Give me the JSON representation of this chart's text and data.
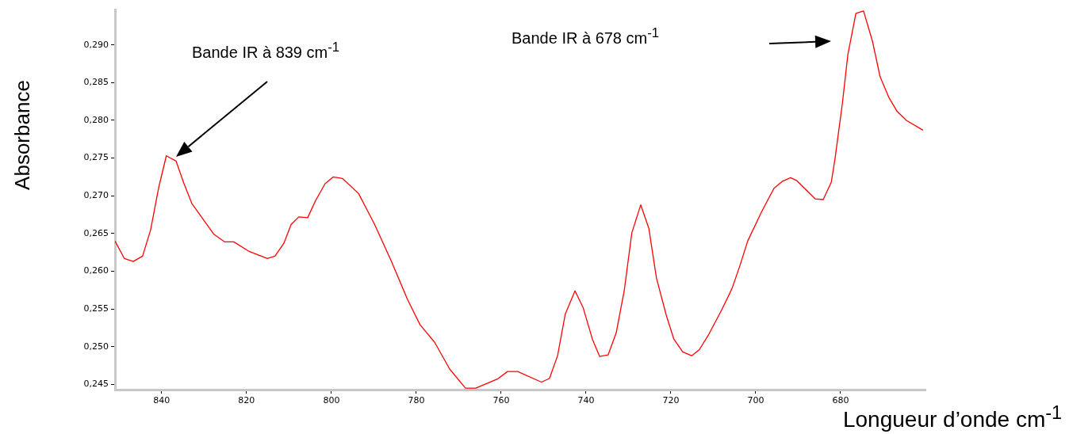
{
  "chart_data": {
    "type": "line",
    "xlabel": "Longueur d’onde cm$^{-1}$",
    "ylabel": "Absorbance",
    "annotations": [
      "Bande IR à 839 cm$^{-1}$",
      "Bande IR à 678 cm$^{-1}$"
    ],
    "xlim": [
      851,
      660
    ],
    "ylim": [
      0.2443,
      0.2947
    ],
    "xticks": [
      840,
      820,
      800,
      780,
      760,
      740,
      720,
      700,
      680
    ],
    "yticks": [
      {
        "value": 0.245,
        "label": "0,245"
      },
      {
        "value": 0.25,
        "label": "0,250"
      },
      {
        "value": 0.255,
        "label": "0,255"
      },
      {
        "value": 0.26,
        "label": "0,260"
      },
      {
        "value": 0.265,
        "label": "0,265"
      },
      {
        "value": 0.27,
        "label": "0,270"
      },
      {
        "value": 0.275,
        "label": "0,275"
      },
      {
        "value": 0.28,
        "label": "0,280"
      },
      {
        "value": 0.285,
        "label": "0,285"
      },
      {
        "value": 0.29,
        "label": "0,290"
      }
    ],
    "grid": false,
    "legend": false,
    "marker": "none",
    "line_style": "solid",
    "series": [
      {
        "color": "#ff0000",
        "x": [
          851.0,
          848.8,
          846.7,
          844.5,
          842.6,
          840.7,
          838.9,
          836.6,
          834.8,
          832.9,
          831.0,
          827.7,
          825.2,
          823.0,
          819.3,
          815.1,
          813.3,
          811.2,
          809.5,
          807.7,
          805.6,
          803.7,
          801.5,
          799.6,
          797.4,
          793.6,
          789.9,
          786.0,
          782.1,
          779.1,
          775.7,
          772.1,
          768.4,
          766.0,
          760.9,
          758.5,
          756.1,
          750.5,
          748.6,
          746.7,
          744.9,
          742.6,
          740.7,
          738.5,
          736.8,
          734.8,
          732.9,
          731.0,
          729.2,
          727.1,
          725.2,
          723.4,
          721.1,
          719.3,
          717.2,
          715.1,
          713.3,
          711.2,
          708.0,
          705.6,
          703.7,
          701.9,
          698.7,
          695.7,
          693.8,
          691.8,
          690.3,
          686.0,
          684.1,
          682.2,
          681.3,
          679.6,
          678.3,
          676.4,
          674.6,
          672.5,
          670.7,
          668.6,
          666.7,
          664.5,
          660.6
        ],
        "values": [
          0.264,
          0.2617,
          0.2613,
          0.262,
          0.2655,
          0.2711,
          0.2753,
          0.2746,
          0.2717,
          0.269,
          0.2675,
          0.2649,
          0.2639,
          0.2639,
          0.2626,
          0.2617,
          0.262,
          0.2637,
          0.2662,
          0.2672,
          0.2671,
          0.2694,
          0.2716,
          0.2725,
          0.2723,
          0.2703,
          0.2663,
          0.2615,
          0.2563,
          0.2529,
          0.2506,
          0.247,
          0.2445,
          0.2445,
          0.2457,
          0.2467,
          0.2467,
          0.2453,
          0.2458,
          0.2488,
          0.2543,
          0.2574,
          0.2552,
          0.251,
          0.2487,
          0.2489,
          0.2518,
          0.2574,
          0.2651,
          0.2688,
          0.2657,
          0.2591,
          0.2542,
          0.251,
          0.2493,
          0.2488,
          0.2496,
          0.2515,
          0.2549,
          0.2577,
          0.2608,
          0.264,
          0.2678,
          0.271,
          0.2719,
          0.2724,
          0.272,
          0.2696,
          0.2695,
          0.2718,
          0.275,
          0.2822,
          0.2887,
          0.2942,
          0.2945,
          0.2905,
          0.2858,
          0.283,
          0.2812,
          0.28,
          0.2787
        ]
      }
    ]
  }
}
